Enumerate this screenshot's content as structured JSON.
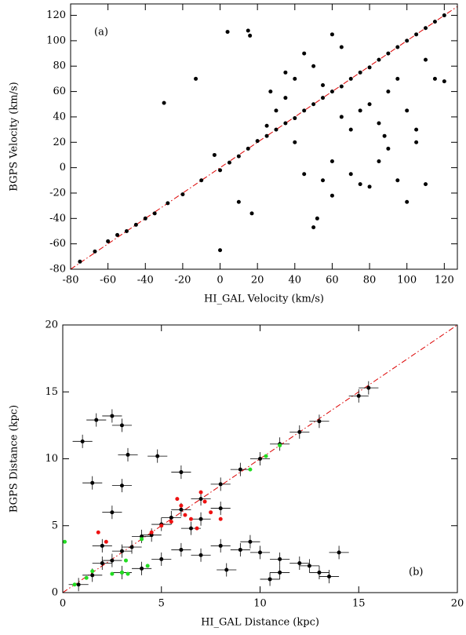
{
  "chart_data": [
    {
      "type": "scatter",
      "annotation": "(a)",
      "x_label": "HI_GAL Velocity (km/s)",
      "y_label": "BGPS Velocity (km/s)",
      "xlim": [
        -80,
        127
      ],
      "ylim": [
        -80,
        129
      ],
      "xticks": [
        -80,
        -60,
        -40,
        -20,
        0,
        20,
        40,
        60,
        80,
        100,
        120
      ],
      "yticks": [
        -80,
        -60,
        -40,
        -20,
        0,
        20,
        40,
        60,
        80,
        100,
        120
      ],
      "diagonal": true,
      "diagonal_color": "#dd0000",
      "series": [
        {
          "color": "#000000",
          "x": [
            -75,
            -67,
            -60,
            -55,
            -50,
            -45,
            -40,
            -35,
            -28,
            -20,
            -10,
            0,
            5,
            10,
            15,
            20,
            25,
            30,
            35,
            40,
            45,
            50,
            55,
            60,
            65,
            70,
            75,
            80,
            85,
            90,
            95,
            100,
            105,
            110,
            115,
            120,
            -30,
            -13,
            -3,
            4,
            15,
            16,
            17,
            10,
            0,
            27,
            35,
            40,
            45,
            50,
            52,
            55,
            60,
            70,
            75,
            80,
            85,
            90,
            95,
            100,
            110,
            60,
            65,
            45,
            50,
            55,
            70,
            75,
            80,
            85,
            90,
            95,
            100,
            105,
            110,
            115,
            120,
            40,
            35,
            30,
            25,
            65,
            105,
            60,
            88
          ],
          "y": [
            -74,
            -66,
            -58,
            -53,
            -50,
            -45,
            -40,
            -36,
            -28,
            -21,
            -10,
            -2,
            4,
            9,
            15,
            21,
            25,
            30,
            35,
            39,
            45,
            50,
            55,
            60,
            64,
            70,
            75,
            79,
            85,
            90,
            95,
            100,
            105,
            110,
            115,
            120,
            51,
            70,
            10,
            107,
            108,
            104,
            -36,
            -27,
            -65,
            60,
            75,
            20,
            -5,
            -47,
            -40,
            -10,
            -22,
            -5,
            -13,
            -15,
            5,
            15,
            -10,
            -27,
            -13,
            105,
            95,
            90,
            80,
            65,
            30,
            45,
            50,
            35,
            60,
            70,
            45,
            30,
            85,
            70,
            68,
            70,
            55,
            45,
            33,
            40,
            20,
            5,
            25
          ]
        }
      ]
    },
    {
      "type": "scatter",
      "annotation": "(b)",
      "x_label": "HI_GAL Distance (kpc)",
      "y_label": "BGPS Distance (kpc)",
      "xlim": [
        0,
        20
      ],
      "ylim": [
        0,
        20
      ],
      "xticks": [
        0,
        5,
        10,
        15,
        20
      ],
      "yticks": [
        0,
        5,
        10,
        15,
        20
      ],
      "diagonal": true,
      "diagonal_color": "#dd0000",
      "series": [
        {
          "color": "#000000",
          "xerr": 0.5,
          "yerr": 0.5,
          "x": [
            0.8,
            1.5,
            2,
            2.5,
            3,
            3.5,
            4,
            4.5,
            5,
            5.5,
            6,
            7,
            8,
            9,
            10,
            11,
            12,
            13,
            15,
            15.5,
            1,
            1.7,
            2.5,
            3,
            3.3,
            4.8,
            6,
            1.5,
            3,
            2.5,
            2,
            5,
            6,
            7,
            8,
            9,
            10,
            11,
            12,
            13,
            13.5,
            14,
            8.3,
            10.5,
            11,
            12.5,
            9.5,
            6.5,
            4,
            3,
            7,
            8
          ],
          "y": [
            0.6,
            1.3,
            2.2,
            2.4,
            3.1,
            3.4,
            4.2,
            4.3,
            5.1,
            5.6,
            6.2,
            7,
            8.1,
            9.2,
            10,
            11.1,
            12,
            12.8,
            14.7,
            15.3,
            11.3,
            12.9,
            13.2,
            12.5,
            10.3,
            10.2,
            9,
            8.2,
            8,
            6,
            3.5,
            2.5,
            3.2,
            2.8,
            3.5,
            3.2,
            3,
            2.5,
            2.2,
            1.5,
            1.2,
            3,
            1.7,
            1,
            1.5,
            2,
            3.8,
            4.8,
            1.8,
            1.5,
            5.5,
            6.3
          ]
        },
        {
          "color": "#ee1111",
          "x": [
            5.5,
            6,
            6.5,
            7,
            7.5,
            8,
            6.8,
            5.8,
            4.5,
            2.2,
            1.8,
            7.2,
            6.2,
            5
          ],
          "y": [
            5.3,
            6.5,
            5.5,
            7.5,
            6,
            5.5,
            4.8,
            7,
            4.5,
            3.8,
            4.5,
            6.8,
            5.8,
            5
          ]
        },
        {
          "color": "#22dd22",
          "x": [
            0.1,
            0.6,
            1.2,
            1.5,
            2.5,
            3,
            3.2,
            4.3,
            4,
            9.5,
            10.3,
            11,
            3.3
          ],
          "y": [
            3.8,
            0.6,
            1.1,
            1.6,
            1.4,
            1.5,
            2.4,
            2,
            4,
            9.2,
            10.2,
            11,
            1.4
          ]
        }
      ]
    }
  ]
}
